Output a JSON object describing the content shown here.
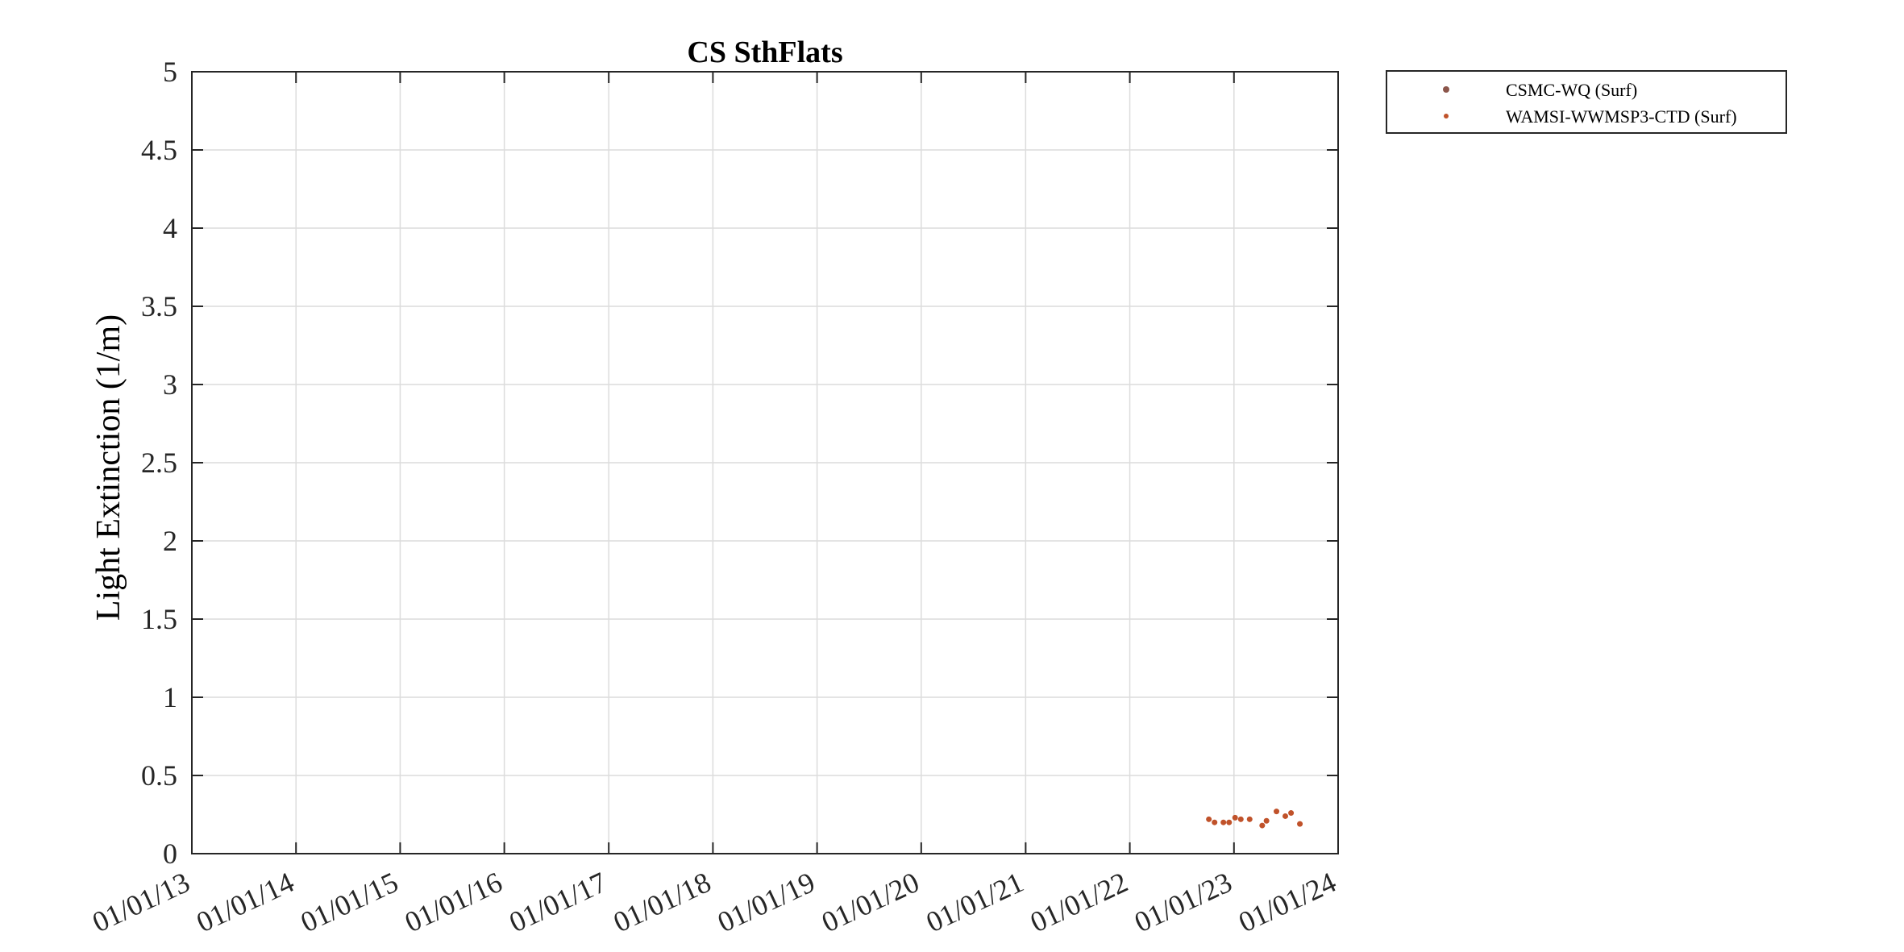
{
  "chart_data": {
    "type": "scatter",
    "title": "CS SthFlats",
    "ylabel": "Light Extinction (1/m)",
    "xlabel": "",
    "xlim": [
      "2013-01-01",
      "2024-01-01"
    ],
    "ylim": [
      0,
      5
    ],
    "x_ticks": [
      "01/01/13",
      "01/01/14",
      "01/01/15",
      "01/01/16",
      "01/01/17",
      "01/01/18",
      "01/01/19",
      "01/01/20",
      "01/01/21",
      "01/01/22",
      "01/01/23",
      "01/01/24"
    ],
    "y_ticks": [
      "0",
      "0.5",
      "1",
      "1.5",
      "2",
      "2.5",
      "3",
      "3.5",
      "4",
      "4.5",
      "5"
    ],
    "y_tick_values": [
      0,
      0.5,
      1,
      1.5,
      2,
      2.5,
      3,
      3.5,
      4,
      4.5,
      5
    ],
    "grid": true,
    "legend_position": "outside-top-right",
    "series": [
      {
        "name": "CSMC-WQ (Surf)",
        "color": "#8c564b",
        "points": []
      },
      {
        "name": "WAMSI-WWMSP3-CTD (Surf)",
        "color": "#c0522a",
        "points": [
          {
            "x": "2022-10-05",
            "y": 0.22
          },
          {
            "x": "2022-10-25",
            "y": 0.2
          },
          {
            "x": "2022-11-25",
            "y": 0.2
          },
          {
            "x": "2022-12-15",
            "y": 0.2
          },
          {
            "x": "2023-01-05",
            "y": 0.23
          },
          {
            "x": "2023-01-25",
            "y": 0.22
          },
          {
            "x": "2023-02-25",
            "y": 0.22
          },
          {
            "x": "2023-04-10",
            "y": 0.18
          },
          {
            "x": "2023-04-25",
            "y": 0.21
          },
          {
            "x": "2023-05-30",
            "y": 0.27
          },
          {
            "x": "2023-06-30",
            "y": 0.24
          },
          {
            "x": "2023-07-20",
            "y": 0.26
          },
          {
            "x": "2023-08-20",
            "y": 0.19
          }
        ]
      }
    ]
  }
}
